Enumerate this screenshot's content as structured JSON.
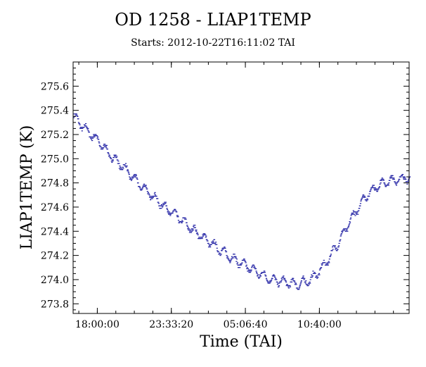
{
  "chart_data": {
    "type": "scatter",
    "title": "OD 1258 - LIAP1TEMP",
    "subtitle": "Starts: 2012-10-22T16:11:02 TAI",
    "xlabel": "Time (TAI)",
    "ylabel": "LIAP1TEMP (K)",
    "x_tick_labels": [
      "18:00:00",
      "23:33:20",
      "05:06:40",
      "10:40:00"
    ],
    "y_tick_labels": [
      "273.8",
      "274.0",
      "274.2",
      "274.4",
      "274.6",
      "274.8",
      "275.0",
      "275.2",
      "275.4",
      "275.6"
    ],
    "xlim": [
      "2012-10-22T16:11:02",
      "2012-10-23T17:24:00"
    ],
    "ylim": [
      273.72,
      275.8
    ],
    "grid": false,
    "marker_color": "#1a1aa0",
    "series": [
      {
        "x": [
          "2012-10-22T16:11:02",
          "2012-10-22T17:00:00",
          "2012-10-22T18:00:00",
          "2012-10-22T19:00:00",
          "2012-10-22T20:00:00",
          "2012-10-22T21:00:00",
          "2012-10-22T22:00:00",
          "2012-10-22T23:00:00",
          "2012-10-23T00:00:00",
          "2012-10-23T01:00:00",
          "2012-10-23T02:00:00",
          "2012-10-23T03:00:00",
          "2012-10-23T04:00:00",
          "2012-10-23T05:00:00",
          "2012-10-23T06:00:00",
          "2012-10-23T07:00:00",
          "2012-10-23T08:00:00",
          "2012-10-23T09:00:00",
          "2012-10-23T10:00:00",
          "2012-10-23T11:00:00",
          "2012-10-23T12:00:00",
          "2012-10-23T13:00:00",
          "2012-10-23T14:00:00",
          "2012-10-23T15:00:00",
          "2012-10-23T16:00:00",
          "2012-10-23T17:00:00",
          "2012-10-23T17:24:00"
        ],
        "y": [
          275.35,
          275.25,
          275.15,
          275.02,
          274.92,
          274.8,
          274.7,
          274.6,
          274.52,
          274.42,
          274.34,
          274.26,
          274.18,
          274.12,
          274.06,
          274.0,
          273.98,
          273.96,
          274.0,
          274.12,
          274.3,
          274.5,
          274.68,
          274.78,
          274.82,
          274.84,
          274.84
        ]
      }
    ]
  }
}
